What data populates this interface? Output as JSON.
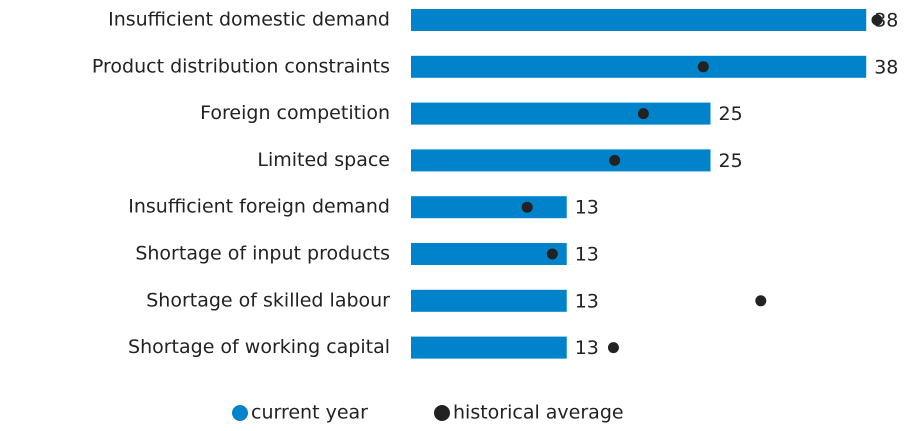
{
  "chart_data": {
    "type": "bar",
    "orientation": "horizontal",
    "categories": [
      "Insufficient domestic demand",
      "Product distribution constraints",
      "Foreign competition",
      "Limited space",
      "Insufficient foreign demand",
      "Shortage of input products",
      "Shortage of skilled labour",
      "Shortage of working capital"
    ],
    "series": [
      {
        "name": "current year",
        "color": "#0083ca",
        "values": [
          38,
          38,
          25,
          25,
          13,
          13,
          13,
          13
        ]
      },
      {
        "name": "historical average",
        "color": "#222222",
        "marker": "dot",
        "values": [
          38.9,
          24.4,
          19.4,
          17.0,
          9.7,
          11.8,
          29.2,
          16.9
        ]
      }
    ],
    "data_labels": true,
    "legend": "bottom"
  }
}
